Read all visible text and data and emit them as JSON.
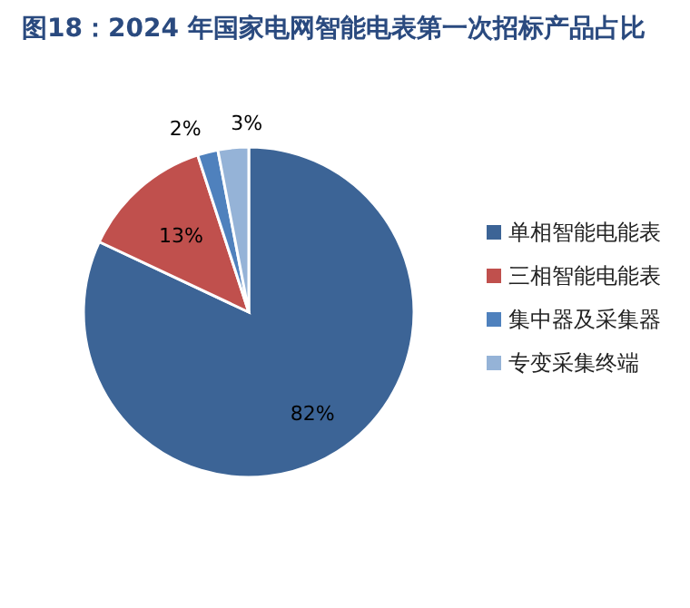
{
  "chart_data": {
    "type": "pie",
    "title": "图18：2024 年国家电网智能电表第一次招标产品占比",
    "categories": [
      "单相智能电能表",
      "三相智能电能表",
      "集中器及采集器",
      "专变采集终端"
    ],
    "values": [
      82,
      13,
      2,
      3
    ],
    "colors": [
      "#3c6496",
      "#c0504d",
      "#4f81bd",
      "#95b3d7"
    ],
    "value_labels": [
      "82%",
      "13%",
      "2%",
      "3%"
    ],
    "legend": "right"
  }
}
